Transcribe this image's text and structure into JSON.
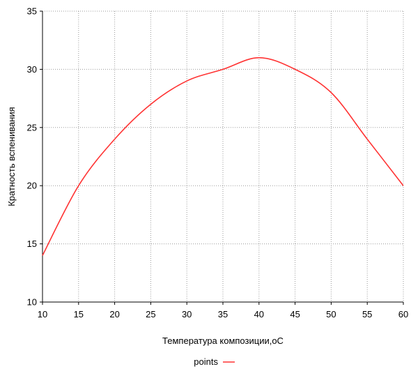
{
  "chart_data": {
    "type": "line",
    "title": "",
    "xlabel": "Температура композиции,oC",
    "ylabel": "Кратность вспенивания",
    "xlim": [
      10,
      60
    ],
    "ylim": [
      10,
      35
    ],
    "xticks": [
      10,
      15,
      20,
      25,
      30,
      35,
      40,
      45,
      50,
      55,
      60
    ],
    "yticks": [
      10,
      15,
      20,
      25,
      30,
      35
    ],
    "grid": true,
    "legend_position": "bottom-center",
    "series": [
      {
        "name": "points",
        "color": "#ff3333",
        "x": [
          10,
          15,
          20,
          25,
          30,
          35,
          40,
          45,
          50,
          55,
          60
        ],
        "y": [
          14,
          20,
          24,
          27,
          29,
          30,
          31,
          30,
          28,
          24,
          20
        ]
      }
    ]
  }
}
